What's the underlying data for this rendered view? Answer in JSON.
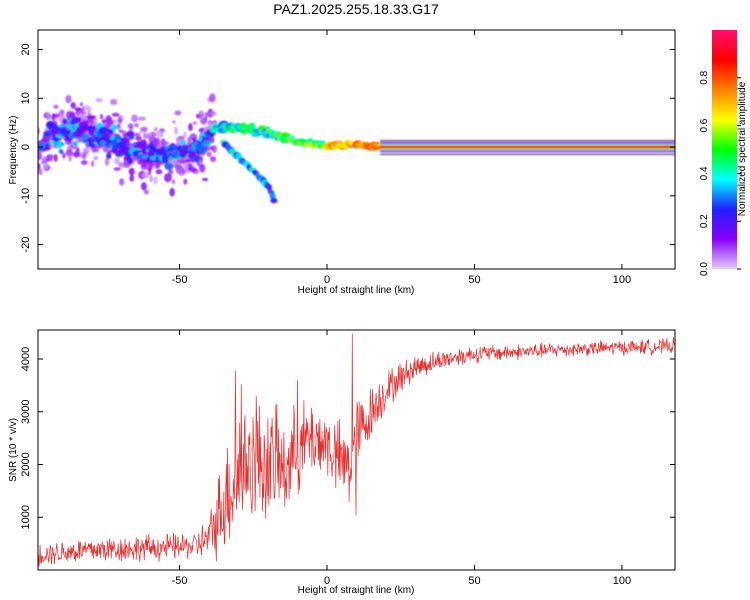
{
  "title": "PAZ1.2025.255.18.33.G17",
  "chart_data": [
    {
      "type": "heatmap",
      "name": "spectrogram",
      "xlabel": "Height of straight line (km)",
      "ylabel": "Frequency (Hz)",
      "xlim": [
        -98,
        118
      ],
      "ylim": [
        -25,
        24
      ],
      "xticks": [
        -50,
        0,
        50,
        100
      ],
      "yticks": [
        -20,
        -10,
        0,
        10,
        20
      ],
      "colorbar": {
        "label": "Normalized spectral amplitude",
        "ticks": [
          "0.0",
          "0.2",
          "0.4",
          "0.6",
          "0.8"
        ],
        "range": [
          0,
          1
        ],
        "stops": [
          "#e4cdf6",
          "#8a00ff",
          "#2020ff",
          "#00ffff",
          "#00ff00",
          "#ffff00",
          "#ff8000",
          "#ff0000",
          "#ff1070"
        ]
      },
      "ridge": [
        {
          "x": -95,
          "f": 3.5,
          "spread": 7
        },
        {
          "x": -80,
          "f": 3.0,
          "spread": 6
        },
        {
          "x": -70,
          "f": 0.5,
          "spread": 5
        },
        {
          "x": -60,
          "f": -1.5,
          "spread": 4
        },
        {
          "x": -45,
          "f": -1.0,
          "spread": 4
        },
        {
          "x": -38,
          "f": 4.0,
          "spread": 2
        },
        {
          "x": -30,
          "f": 4.0,
          "spread": 2
        },
        {
          "x": -20,
          "f": 3.0,
          "spread": 1.5
        },
        {
          "x": -10,
          "f": 1.0,
          "spread": 1
        },
        {
          "x": 0,
          "f": 0.3,
          "spread": 1
        },
        {
          "x": 10,
          "f": 0.5,
          "spread": 1
        },
        {
          "x": 18,
          "f": 0.0,
          "spread": 0.6
        },
        {
          "x": 118,
          "f": 0.0,
          "spread": 0.6
        }
      ],
      "branch": [
        {
          "x": -35,
          "f": 1.0
        },
        {
          "x": -30,
          "f": -2.0
        },
        {
          "x": -25,
          "f": -5.0
        },
        {
          "x": -20,
          "f": -8.0
        },
        {
          "x": -18,
          "f": -11.0
        }
      ]
    },
    {
      "type": "line",
      "name": "snr",
      "xlabel": "Height of straight line (km)",
      "ylabel": "SNR (10 * v/v)",
      "color": "#ee2c2c",
      "xlim": [
        -98,
        118
      ],
      "ylim": [
        0,
        4550
      ],
      "xticks": [
        -50,
        0,
        50,
        100
      ],
      "yticks": [
        1000,
        2000,
        3000,
        4000
      ],
      "x": [
        -98,
        -80,
        -60,
        -45,
        -40,
        -35,
        -30,
        -25,
        -20,
        -15,
        -10,
        -5,
        0,
        5,
        8,
        10,
        15,
        20,
        25,
        30,
        40,
        50,
        60,
        70,
        80,
        90,
        100,
        110,
        118
      ],
      "y": [
        300,
        380,
        420,
        460,
        600,
        1300,
        1900,
        2100,
        2000,
        1900,
        2300,
        2500,
        2400,
        2000,
        2000,
        2500,
        3000,
        3400,
        3650,
        3850,
        4000,
        4100,
        4120,
        4150,
        4180,
        4200,
        4220,
        4230,
        4250
      ],
      "noise": [
        250,
        300,
        300,
        300,
        500,
        1200,
        1500,
        1400,
        1300,
        1100,
        1000,
        900,
        800,
        900,
        1000,
        900,
        600,
        450,
        350,
        280,
        220,
        200,
        180,
        170,
        170,
        170,
        170,
        170,
        170
      ],
      "spikes": [
        {
          "x": -31,
          "y": 3780
        },
        {
          "x": -29,
          "y": 3520
        },
        {
          "x": -24,
          "y": 3300
        },
        {
          "x": -17,
          "y": 3150
        },
        {
          "x": -10,
          "y": 3600
        },
        {
          "x": 8.6,
          "y": 4480
        },
        {
          "x": 9.8,
          "y": 1030
        }
      ]
    }
  ]
}
